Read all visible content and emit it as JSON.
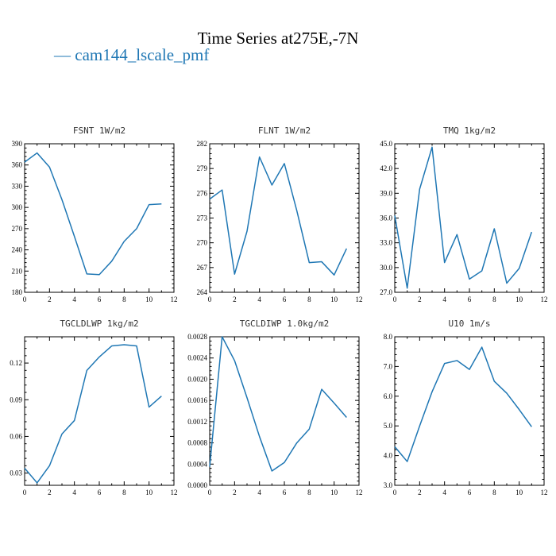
{
  "figure": {
    "title": "Time Series at275E,-7N",
    "legend_label": "— cam144_lscale_pmf",
    "line_color": "#1f77b4"
  },
  "chart_data": [
    {
      "type": "line",
      "title": "FSNT  1W/m2",
      "x": [
        0,
        1,
        2,
        3,
        4,
        5,
        6,
        7,
        8,
        9,
        10,
        11
      ],
      "series": [
        {
          "values": [
            364,
            377,
            357,
            311,
            259,
            206,
            205,
            224,
            252,
            270,
            304,
            305
          ]
        }
      ],
      "xlim": [
        0,
        12
      ],
      "xticks": [
        0,
        2,
        4,
        6,
        8,
        10,
        12
      ],
      "ylim": [
        180,
        390
      ],
      "yticks": [
        180,
        210,
        240,
        270,
        300,
        330,
        360,
        390
      ],
      "ytick_labels": [
        "180",
        "210",
        "240",
        "270",
        "300",
        "330",
        "360",
        "390"
      ]
    },
    {
      "type": "line",
      "title": "FLNT  1W/m2",
      "x": [
        0,
        1,
        2,
        3,
        4,
        5,
        6,
        7,
        8,
        9,
        10,
        11
      ],
      "series": [
        {
          "values": [
            275.3,
            276.4,
            266.2,
            271.4,
            280.4,
            277.0,
            279.6,
            273.9,
            267.6,
            267.7,
            266.1,
            269.3
          ]
        }
      ],
      "xlim": [
        0,
        12
      ],
      "xticks": [
        0,
        2,
        4,
        6,
        8,
        10,
        12
      ],
      "ylim": [
        264,
        282
      ],
      "yticks": [
        264,
        267,
        270,
        273,
        276,
        279,
        282
      ],
      "ytick_labels": [
        "264",
        "267",
        "270",
        "273",
        "276",
        "279",
        "282"
      ]
    },
    {
      "type": "line",
      "title": "TMQ  1kg/m2",
      "x": [
        0,
        1,
        2,
        3,
        4,
        5,
        6,
        7,
        8,
        9,
        10,
        11
      ],
      "series": [
        {
          "values": [
            36.3,
            27.5,
            39.5,
            44.6,
            30.6,
            34.0,
            28.6,
            29.6,
            34.7,
            28.1,
            29.9,
            34.3
          ]
        }
      ],
      "xlim": [
        0,
        12
      ],
      "xticks": [
        0,
        2,
        4,
        6,
        8,
        10,
        12
      ],
      "ylim": [
        27,
        45
      ],
      "yticks": [
        27,
        30,
        33,
        36,
        39,
        42,
        45
      ],
      "ytick_labels": [
        "27.0",
        "30.0",
        "33.0",
        "36.0",
        "39.0",
        "42.0",
        "45.0"
      ]
    },
    {
      "type": "line",
      "title": "TGCLDLWP  1kg/m2",
      "x": [
        0,
        1,
        2,
        3,
        4,
        5,
        6,
        7,
        8,
        9,
        10,
        11
      ],
      "series": [
        {
          "values": [
            0.034,
            0.022,
            0.036,
            0.062,
            0.073,
            0.114,
            0.125,
            0.134,
            0.135,
            0.134,
            0.084,
            0.093
          ]
        }
      ],
      "xlim": [
        0,
        12
      ],
      "xticks": [
        0,
        2,
        4,
        6,
        8,
        10,
        12
      ],
      "ylim": [
        0.02,
        0.1415
      ],
      "yticks": [
        0.03,
        0.06,
        0.09,
        0.12
      ],
      "ytick_labels": [
        "0.03",
        "0.06",
        "0.09",
        "0.12"
      ]
    },
    {
      "type": "line",
      "title": "TGCLDIWP  1.0kg/m2",
      "x": [
        0,
        1,
        2,
        3,
        4,
        5,
        6,
        7,
        8,
        9,
        10,
        11
      ],
      "series": [
        {
          "values": [
            0.00035,
            0.0028,
            0.00235,
            0.00165,
            0.00092,
            0.00027,
            0.00043,
            0.0008,
            0.00106,
            0.00181,
            0.00155,
            0.00128
          ]
        }
      ],
      "xlim": [
        0,
        12
      ],
      "xticks": [
        0,
        2,
        4,
        6,
        8,
        10,
        12
      ],
      "ylim": [
        0,
        0.0028
      ],
      "yticks": [
        0,
        0.0004,
        0.0008,
        0.0012,
        0.0016,
        0.002,
        0.0024,
        0.0028
      ],
      "ytick_labels": [
        "0.0000",
        "0.0004",
        "0.0008",
        "0.0012",
        "0.0016",
        "0.0020",
        "0.0024",
        "0.0028"
      ]
    },
    {
      "type": "line",
      "title": "U10  1m/s",
      "x": [
        0,
        1,
        2,
        3,
        4,
        5,
        6,
        7,
        8,
        9,
        10,
        11
      ],
      "series": [
        {
          "values": [
            4.3,
            3.8,
            5.0,
            6.15,
            7.1,
            7.2,
            6.9,
            7.65,
            6.5,
            6.1,
            5.55,
            4.97
          ]
        }
      ],
      "xlim": [
        0,
        12
      ],
      "xticks": [
        0,
        2,
        4,
        6,
        8,
        10,
        12
      ],
      "ylim": [
        3,
        8
      ],
      "yticks": [
        3,
        4,
        5,
        6,
        7,
        8
      ],
      "ytick_labels": [
        "3.0",
        "4.0",
        "5.0",
        "6.0",
        "7.0",
        "8.0"
      ]
    }
  ]
}
